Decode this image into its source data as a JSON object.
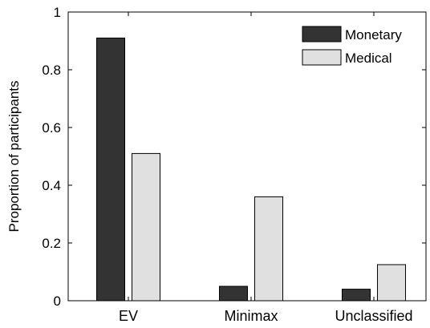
{
  "chart_data": {
    "type": "bar",
    "title": "",
    "xlabel": "",
    "ylabel": "Proportion of participants",
    "ylim": [
      0,
      1
    ],
    "yticks": [
      0,
      0.2,
      0.4,
      0.6,
      0.8,
      1
    ],
    "ytick_labels": [
      "0",
      "0.2",
      "0.4",
      "0.6",
      "0.8",
      "1"
    ],
    "categories": [
      "EV",
      "Minimax",
      "Unclassified"
    ],
    "series": [
      {
        "name": "Monetary",
        "color": "#333333",
        "values": [
          0.91,
          0.05,
          0.04
        ]
      },
      {
        "name": "Medical",
        "color": "#e0e0e0",
        "values": [
          0.51,
          0.36,
          0.125
        ]
      }
    ],
    "legend_position": "top-right",
    "grid": false
  }
}
